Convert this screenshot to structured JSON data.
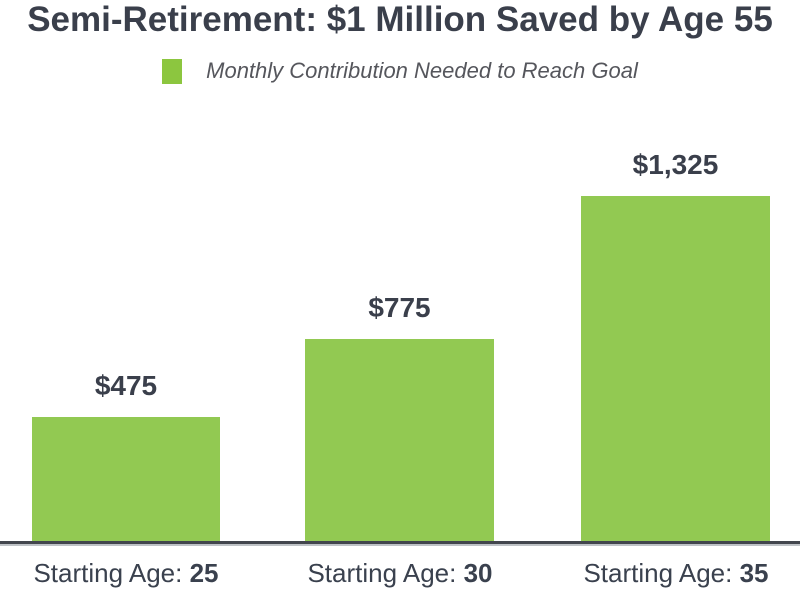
{
  "page": {
    "background": "#FFFFFF"
  },
  "chart_data": {
    "type": "bar",
    "title": "Semi-Retirement: $1 Million Saved by Age 55",
    "legend": {
      "label": "Monthly Contribution Needed to Reach Goal",
      "swatch_color": "#8CC63F",
      "position": "top-center",
      "style": "italic"
    },
    "categories": [
      "Starting Age: 25",
      "Starting Age: 30",
      "Starting Age: 35"
    ],
    "x_labels": [
      {
        "prefix": "Starting Age:",
        "age": "25"
      },
      {
        "prefix": "Starting Age:",
        "age": "30"
      },
      {
        "prefix": "Starting Age:",
        "age": "35"
      }
    ],
    "values": [
      475,
      775,
      1325
    ],
    "value_labels": [
      "$475",
      "$775",
      "$1,325"
    ],
    "xlabel": "",
    "ylabel": "",
    "ylim": [
      0,
      1400
    ],
    "grid": false,
    "y_axis_visible": false,
    "colors": {
      "bar": "#92C952",
      "title_text": "#3A3F4B",
      "value_label_text": "#3A3F4B",
      "x_label_text": "#3A414E",
      "legend_text": "#55565C",
      "axis_line": "#42464D",
      "axis_shadow": "#BEC2C6",
      "background": "#FFFFFF"
    }
  }
}
